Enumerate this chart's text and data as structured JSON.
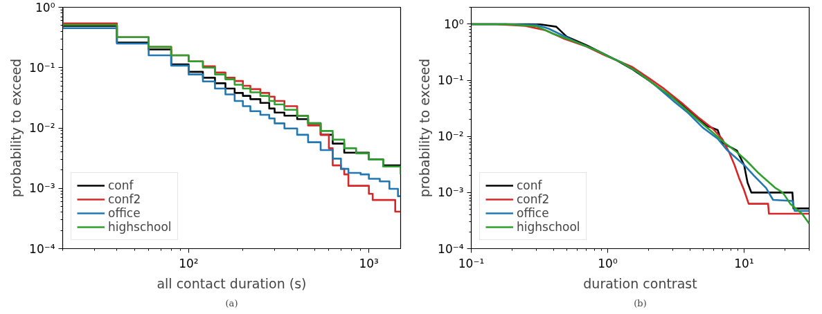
{
  "chart_data": [
    {
      "type": "step",
      "xlabel": "all contact duration (s)",
      "ylabel": "probability to exceed",
      "annotations": [
        "(a)"
      ],
      "log": "xy",
      "grid": false,
      "legend": "bottom left",
      "xlim": [
        20,
        1500
      ],
      "ylim": [
        0.0001,
        1
      ],
      "xticks": [
        {
          "value": 100,
          "label": "10²"
        },
        {
          "value": 1000,
          "label": "10³"
        }
      ],
      "yticks": [
        {
          "value": 0.0001,
          "label": "10⁻⁴"
        },
        {
          "value": 0.001,
          "label": "10⁻³"
        },
        {
          "value": 0.01,
          "label": "10⁻²"
        },
        {
          "value": 0.1,
          "label": "10⁻¹"
        },
        {
          "value": 1,
          "label": "10⁰"
        }
      ],
      "series": [
        {
          "name": "conf",
          "color": "#000000",
          "x": [
            20,
            20,
            40,
            60,
            80,
            100,
            120,
            140,
            160,
            180,
            200,
            220,
            250,
            280,
            300,
            340,
            400,
            460,
            540,
            630,
            730,
            1000,
            1200,
            1500
          ],
          "values": [
            1,
            0.49,
            0.26,
            0.2,
            0.113,
            0.085,
            0.068,
            0.055,
            0.045,
            0.038,
            0.034,
            0.03,
            0.026,
            0.021,
            0.018,
            0.016,
            0.014,
            0.012,
            0.0077,
            0.0055,
            0.0039,
            0.003,
            0.0024,
            0.0024
          ]
        },
        {
          "name": "conf2",
          "color": "#d62728",
          "x": [
            20,
            20,
            40,
            60,
            80,
            100,
            120,
            140,
            160,
            180,
            200,
            220,
            250,
            280,
            300,
            340,
            400,
            460,
            540,
            600,
            630,
            700,
            730,
            770,
            1000,
            1050,
            1400,
            1500
          ],
          "values": [
            1,
            0.54,
            0.32,
            0.22,
            0.16,
            0.127,
            0.105,
            0.083,
            0.068,
            0.06,
            0.05,
            0.044,
            0.038,
            0.033,
            0.028,
            0.023,
            0.016,
            0.011,
            0.0077,
            0.0046,
            0.0024,
            0.0021,
            0.0017,
            0.0011,
            0.00081,
            0.00064,
            0.00041,
            0.00041
          ]
        },
        {
          "name": "office",
          "color": "#1f77b4",
          "x": [
            20,
            20,
            40,
            60,
            80,
            100,
            120,
            140,
            160,
            180,
            200,
            220,
            250,
            280,
            300,
            340,
            400,
            460,
            540,
            630,
            700,
            770,
            900,
            1000,
            1150,
            1300,
            1450,
            1500
          ],
          "values": [
            1,
            0.45,
            0.25,
            0.16,
            0.108,
            0.077,
            0.059,
            0.045,
            0.036,
            0.028,
            0.023,
            0.019,
            0.0165,
            0.0144,
            0.0119,
            0.0098,
            0.0077,
            0.0058,
            0.0043,
            0.0031,
            0.0021,
            0.0018,
            0.0017,
            0.00144,
            0.0013,
            0.00098,
            0.00074,
            0.00074
          ]
        },
        {
          "name": "highschool",
          "color": "#2ca02c",
          "x": [
            20,
            20,
            40,
            60,
            80,
            100,
            120,
            140,
            160,
            180,
            200,
            220,
            250,
            280,
            300,
            340,
            400,
            460,
            540,
            630,
            730,
            850,
            1000,
            1200,
            1500
          ],
          "values": [
            1,
            0.51,
            0.32,
            0.22,
            0.16,
            0.127,
            0.1,
            0.077,
            0.064,
            0.052,
            0.045,
            0.039,
            0.034,
            0.028,
            0.0245,
            0.02,
            0.0158,
            0.0119,
            0.0089,
            0.0064,
            0.0046,
            0.0038,
            0.003,
            0.0023,
            0.0017
          ]
        }
      ]
    },
    {
      "type": "line",
      "xlabel": "duration contrast",
      "ylabel": "probability to exceed",
      "annotations": [
        "(b)"
      ],
      "log": "xy",
      "grid": false,
      "legend": "bottom left",
      "xlim": [
        0.1,
        30
      ],
      "ylim": [
        0.0001,
        2
      ],
      "xticks": [
        {
          "value": 0.1,
          "label": "10⁻¹"
        },
        {
          "value": 1,
          "label": "10⁰"
        },
        {
          "value": 10,
          "label": "10¹"
        }
      ],
      "yticks": [
        {
          "value": 0.0001,
          "label": "10⁻⁴"
        },
        {
          "value": 0.001,
          "label": "10⁻³"
        },
        {
          "value": 0.01,
          "label": "10⁻²"
        },
        {
          "value": 0.1,
          "label": "10⁻¹"
        },
        {
          "value": 1,
          "label": "10⁰"
        }
      ],
      "series": [
        {
          "name": "conf",
          "color": "#000000",
          "x": [
            0.1,
            0.2,
            0.32,
            0.42,
            0.5,
            0.7,
            0.9,
            1.15,
            1.5,
            2.0,
            2.6,
            3.3,
            4.2,
            5.3,
            6.4,
            6.9,
            8.85,
            10,
            10.6,
            11.3,
            22.6,
            23,
            30
          ],
          "values": [
            1,
            1,
            0.99,
            0.9,
            0.6,
            0.42,
            0.31,
            0.23,
            0.16,
            0.1,
            0.062,
            0.042,
            0.025,
            0.0155,
            0.013,
            0.0077,
            0.0056,
            0.0031,
            0.0015,
            0.001,
            0.001,
            0.00052,
            0.00052
          ]
        },
        {
          "name": "conf2",
          "color": "#d62728",
          "x": [
            0.1,
            0.15,
            0.25,
            0.35,
            0.48,
            0.7,
            0.95,
            1.2,
            1.5,
            2.0,
            2.6,
            3.6,
            4.6,
            5.9,
            6.9,
            7.8,
            8.5,
            9.2,
            10,
            10.8,
            15,
            15.2,
            30
          ],
          "values": [
            1,
            1,
            0.93,
            0.78,
            0.55,
            0.4,
            0.28,
            0.22,
            0.175,
            0.11,
            0.07,
            0.037,
            0.022,
            0.0137,
            0.0091,
            0.0051,
            0.0031,
            0.0018,
            0.0011,
            0.00063,
            0.00063,
            0.00042,
            0.00042
          ]
        },
        {
          "name": "office",
          "color": "#1f77b4",
          "x": [
            0.1,
            0.18,
            0.3,
            0.37,
            0.6,
            0.83,
            1,
            1.25,
            1.66,
            2.2,
            3.1,
            3.9,
            4.97,
            6.4,
            7.5,
            10,
            11.8,
            14.5,
            16.3,
            22.6,
            23.5,
            30
          ],
          "values": [
            1,
            1,
            0.97,
            0.83,
            0.47,
            0.34,
            0.27,
            0.21,
            0.14,
            0.084,
            0.041,
            0.026,
            0.0144,
            0.0091,
            0.0057,
            0.0031,
            0.002,
            0.0012,
            0.00074,
            0.00071,
            0.00047,
            0.00047
          ]
        },
        {
          "name": "highschool",
          "color": "#2ca02c",
          "x": [
            0.1,
            0.18,
            0.3,
            0.4,
            0.6,
            0.83,
            1,
            1.25,
            1.66,
            2.2,
            2.8,
            3.6,
            4.6,
            5.9,
            7.2,
            8.8,
            10.4,
            12.8,
            17,
            19.2,
            21.8,
            26.6,
            30
          ],
          "values": [
            1,
            1,
            0.92,
            0.67,
            0.47,
            0.34,
            0.27,
            0.21,
            0.14,
            0.084,
            0.056,
            0.033,
            0.0196,
            0.0117,
            0.0077,
            0.0053,
            0.0037,
            0.0022,
            0.0012,
            0.001,
            0.00063,
            0.00042,
            0.00028
          ]
        }
      ]
    }
  ]
}
